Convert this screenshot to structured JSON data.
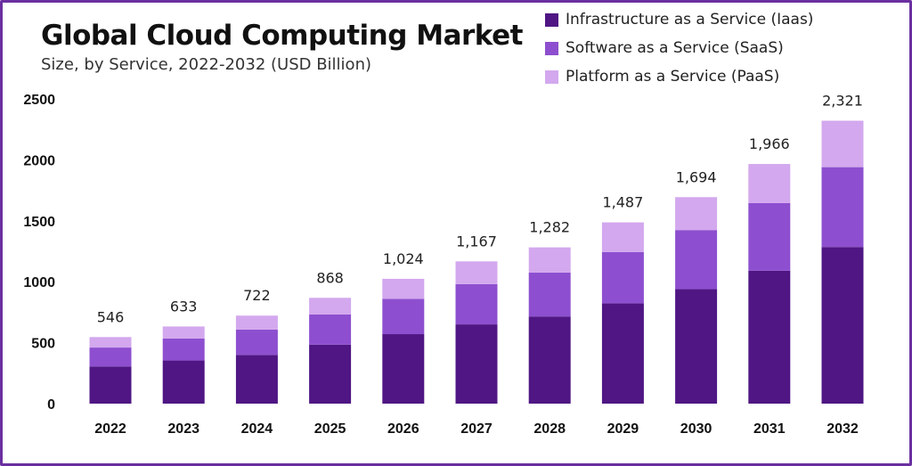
{
  "header": {
    "title": "Global Cloud Computing Market",
    "subtitle": "Size, by Service, 2022-2032 (USD Billion)"
  },
  "colors": {
    "border": "#6b2fa0",
    "iaas": "#4f1684",
    "saas": "#8d4fcf",
    "paas": "#d3a8ee"
  },
  "chart_data": {
    "type": "bar",
    "stacked": true,
    "categories": [
      "2022",
      "2023",
      "2024",
      "2025",
      "2026",
      "2027",
      "2028",
      "2029",
      "2030",
      "2031",
      "2032"
    ],
    "series": [
      {
        "name": "Infrastructure as a Service (Iaas)",
        "color": "#4f1684",
        "values": [
          305,
          354,
          400,
          484,
          570,
          650,
          715,
          822,
          939,
          1090,
          1285
        ]
      },
      {
        "name": "Software as a Service (SaaS)",
        "color": "#8d4fcf",
        "values": [
          155,
          180,
          208,
          248,
          290,
          330,
          360,
          422,
          485,
          555,
          655
        ]
      },
      {
        "name": "Platform as a Service (PaaS)",
        "color": "#d3a8ee",
        "values": [
          86,
          99,
          114,
          136,
          164,
          187,
          207,
          243,
          270,
          321,
          381
        ]
      }
    ],
    "totals": [
      "546",
      "633",
      "722",
      "868",
      "1,024",
      "1,167",
      "1,282",
      "1,487",
      "1,694",
      "1,966",
      "2,321"
    ],
    "y_ticks": [
      "0",
      "500",
      "1000",
      "1500",
      "2000",
      "2500"
    ],
    "ylim": [
      0,
      2500
    ],
    "grid": false,
    "legend_position": "top-right"
  }
}
